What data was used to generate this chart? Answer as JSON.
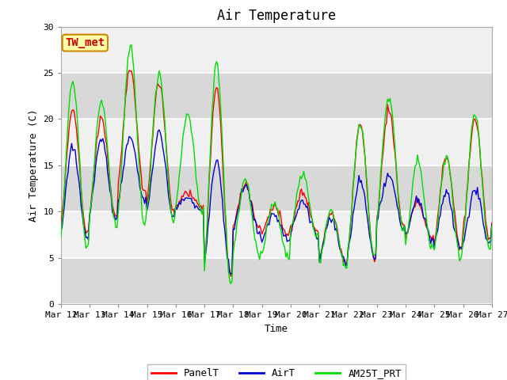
{
  "title": "Air Temperature",
  "ylabel": "Air Temperature (C)",
  "xlabel": "Time",
  "annotation": "TW_met",
  "ylim": [
    0,
    30
  ],
  "xlim": [
    0,
    360
  ],
  "x_tick_labels": [
    "Mar 12",
    "Mar 13",
    "Mar 14",
    "Mar 15",
    "Mar 16",
    "Mar 17",
    "Mar 18",
    "Mar 19",
    "Mar 20",
    "Mar 21",
    "Mar 22",
    "Mar 23",
    "Mar 24",
    "Mar 25",
    "Mar 26",
    "Mar 27"
  ],
  "x_tick_positions": [
    0,
    24,
    48,
    72,
    96,
    120,
    144,
    168,
    192,
    216,
    240,
    264,
    288,
    312,
    336,
    360
  ],
  "y_ticks": [
    0,
    5,
    10,
    15,
    20,
    25,
    30
  ],
  "series_colors": {
    "PanelT": "#ff0000",
    "AirT": "#0000cc",
    "AM25T_PRT": "#00dd00"
  },
  "bg_outer": "#e8e8e8",
  "bg_band_light": "#f0f0f0",
  "bg_band_dark": "#d8d8d8",
  "grid_color": "#ffffff",
  "annotation_bg": "#ffffaa",
  "annotation_border": "#cc8800",
  "annotation_text_color": "#cc0000",
  "line_width": 1.0,
  "title_fontsize": 12,
  "label_fontsize": 9,
  "tick_fontsize": 8,
  "legend_fontsize": 9,
  "panel_max": [
    21,
    20,
    25.5,
    24,
    12,
    23.5,
    13,
    10.5,
    12,
    10,
    19.5,
    21,
    11,
    16,
    20,
    10
  ],
  "panel_min": [
    7.5,
    9.5,
    12,
    10,
    10.5,
    3,
    8,
    7.5,
    8,
    4.5,
    5,
    8.5,
    7,
    6,
    7,
    8.5
  ],
  "air_max": [
    17,
    18,
    18,
    18.5,
    11.5,
    15.5,
    12.8,
    9.5,
    11,
    9.5,
    13.5,
    14,
    11.5,
    12,
    12.5,
    9.5
  ],
  "air_min": [
    7,
    9,
    11,
    9.5,
    10,
    3.5,
    7.5,
    7,
    7.5,
    4.5,
    5,
    8.5,
    7,
    6,
    6.5,
    8
  ],
  "am25_max": [
    24,
    22,
    28,
    25,
    20.5,
    26,
    13.5,
    11,
    14,
    10,
    19.5,
    22.5,
    15.5,
    16,
    20.5,
    10
  ],
  "am25_min": [
    6,
    8.5,
    8.5,
    9,
    10,
    2,
    5,
    5,
    7.5,
    4,
    5,
    8,
    6,
    5,
    6,
    8.5
  ]
}
